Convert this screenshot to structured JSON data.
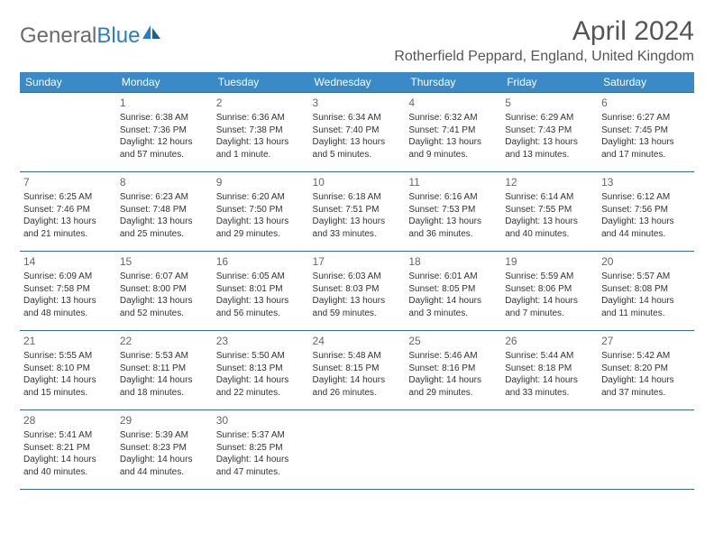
{
  "logo": {
    "textGeneral": "General",
    "textBlue": "Blue"
  },
  "title": "April 2024",
  "location": "Rotherfield Peppard, England, United Kingdom",
  "colors": {
    "headerBg": "#3a8ac8",
    "headerText": "#ffffff",
    "cellBorder": "#3a6a93",
    "textGrey": "#555555",
    "logoGrey": "#6b6b6b",
    "logoBlue": "#2a7fc4"
  },
  "dayHeaders": [
    "Sunday",
    "Monday",
    "Tuesday",
    "Wednesday",
    "Thursday",
    "Friday",
    "Saturday"
  ],
  "weeks": [
    [
      null,
      {
        "n": "1",
        "sr": "Sunrise: 6:38 AM",
        "ss": "Sunset: 7:36 PM",
        "d1": "Daylight: 12 hours",
        "d2": "and 57 minutes."
      },
      {
        "n": "2",
        "sr": "Sunrise: 6:36 AM",
        "ss": "Sunset: 7:38 PM",
        "d1": "Daylight: 13 hours",
        "d2": "and 1 minute."
      },
      {
        "n": "3",
        "sr": "Sunrise: 6:34 AM",
        "ss": "Sunset: 7:40 PM",
        "d1": "Daylight: 13 hours",
        "d2": "and 5 minutes."
      },
      {
        "n": "4",
        "sr": "Sunrise: 6:32 AM",
        "ss": "Sunset: 7:41 PM",
        "d1": "Daylight: 13 hours",
        "d2": "and 9 minutes."
      },
      {
        "n": "5",
        "sr": "Sunrise: 6:29 AM",
        "ss": "Sunset: 7:43 PM",
        "d1": "Daylight: 13 hours",
        "d2": "and 13 minutes."
      },
      {
        "n": "6",
        "sr": "Sunrise: 6:27 AM",
        "ss": "Sunset: 7:45 PM",
        "d1": "Daylight: 13 hours",
        "d2": "and 17 minutes."
      }
    ],
    [
      {
        "n": "7",
        "sr": "Sunrise: 6:25 AM",
        "ss": "Sunset: 7:46 PM",
        "d1": "Daylight: 13 hours",
        "d2": "and 21 minutes."
      },
      {
        "n": "8",
        "sr": "Sunrise: 6:23 AM",
        "ss": "Sunset: 7:48 PM",
        "d1": "Daylight: 13 hours",
        "d2": "and 25 minutes."
      },
      {
        "n": "9",
        "sr": "Sunrise: 6:20 AM",
        "ss": "Sunset: 7:50 PM",
        "d1": "Daylight: 13 hours",
        "d2": "and 29 minutes."
      },
      {
        "n": "10",
        "sr": "Sunrise: 6:18 AM",
        "ss": "Sunset: 7:51 PM",
        "d1": "Daylight: 13 hours",
        "d2": "and 33 minutes."
      },
      {
        "n": "11",
        "sr": "Sunrise: 6:16 AM",
        "ss": "Sunset: 7:53 PM",
        "d1": "Daylight: 13 hours",
        "d2": "and 36 minutes."
      },
      {
        "n": "12",
        "sr": "Sunrise: 6:14 AM",
        "ss": "Sunset: 7:55 PM",
        "d1": "Daylight: 13 hours",
        "d2": "and 40 minutes."
      },
      {
        "n": "13",
        "sr": "Sunrise: 6:12 AM",
        "ss": "Sunset: 7:56 PM",
        "d1": "Daylight: 13 hours",
        "d2": "and 44 minutes."
      }
    ],
    [
      {
        "n": "14",
        "sr": "Sunrise: 6:09 AM",
        "ss": "Sunset: 7:58 PM",
        "d1": "Daylight: 13 hours",
        "d2": "and 48 minutes."
      },
      {
        "n": "15",
        "sr": "Sunrise: 6:07 AM",
        "ss": "Sunset: 8:00 PM",
        "d1": "Daylight: 13 hours",
        "d2": "and 52 minutes."
      },
      {
        "n": "16",
        "sr": "Sunrise: 6:05 AM",
        "ss": "Sunset: 8:01 PM",
        "d1": "Daylight: 13 hours",
        "d2": "and 56 minutes."
      },
      {
        "n": "17",
        "sr": "Sunrise: 6:03 AM",
        "ss": "Sunset: 8:03 PM",
        "d1": "Daylight: 13 hours",
        "d2": "and 59 minutes."
      },
      {
        "n": "18",
        "sr": "Sunrise: 6:01 AM",
        "ss": "Sunset: 8:05 PM",
        "d1": "Daylight: 14 hours",
        "d2": "and 3 minutes."
      },
      {
        "n": "19",
        "sr": "Sunrise: 5:59 AM",
        "ss": "Sunset: 8:06 PM",
        "d1": "Daylight: 14 hours",
        "d2": "and 7 minutes."
      },
      {
        "n": "20",
        "sr": "Sunrise: 5:57 AM",
        "ss": "Sunset: 8:08 PM",
        "d1": "Daylight: 14 hours",
        "d2": "and 11 minutes."
      }
    ],
    [
      {
        "n": "21",
        "sr": "Sunrise: 5:55 AM",
        "ss": "Sunset: 8:10 PM",
        "d1": "Daylight: 14 hours",
        "d2": "and 15 minutes."
      },
      {
        "n": "22",
        "sr": "Sunrise: 5:53 AM",
        "ss": "Sunset: 8:11 PM",
        "d1": "Daylight: 14 hours",
        "d2": "and 18 minutes."
      },
      {
        "n": "23",
        "sr": "Sunrise: 5:50 AM",
        "ss": "Sunset: 8:13 PM",
        "d1": "Daylight: 14 hours",
        "d2": "and 22 minutes."
      },
      {
        "n": "24",
        "sr": "Sunrise: 5:48 AM",
        "ss": "Sunset: 8:15 PM",
        "d1": "Daylight: 14 hours",
        "d2": "and 26 minutes."
      },
      {
        "n": "25",
        "sr": "Sunrise: 5:46 AM",
        "ss": "Sunset: 8:16 PM",
        "d1": "Daylight: 14 hours",
        "d2": "and 29 minutes."
      },
      {
        "n": "26",
        "sr": "Sunrise: 5:44 AM",
        "ss": "Sunset: 8:18 PM",
        "d1": "Daylight: 14 hours",
        "d2": "and 33 minutes."
      },
      {
        "n": "27",
        "sr": "Sunrise: 5:42 AM",
        "ss": "Sunset: 8:20 PM",
        "d1": "Daylight: 14 hours",
        "d2": "and 37 minutes."
      }
    ],
    [
      {
        "n": "28",
        "sr": "Sunrise: 5:41 AM",
        "ss": "Sunset: 8:21 PM",
        "d1": "Daylight: 14 hours",
        "d2": "and 40 minutes."
      },
      {
        "n": "29",
        "sr": "Sunrise: 5:39 AM",
        "ss": "Sunset: 8:23 PM",
        "d1": "Daylight: 14 hours",
        "d2": "and 44 minutes."
      },
      {
        "n": "30",
        "sr": "Sunrise: 5:37 AM",
        "ss": "Sunset: 8:25 PM",
        "d1": "Daylight: 14 hours",
        "d2": "and 47 minutes."
      },
      null,
      null,
      null,
      null
    ]
  ]
}
